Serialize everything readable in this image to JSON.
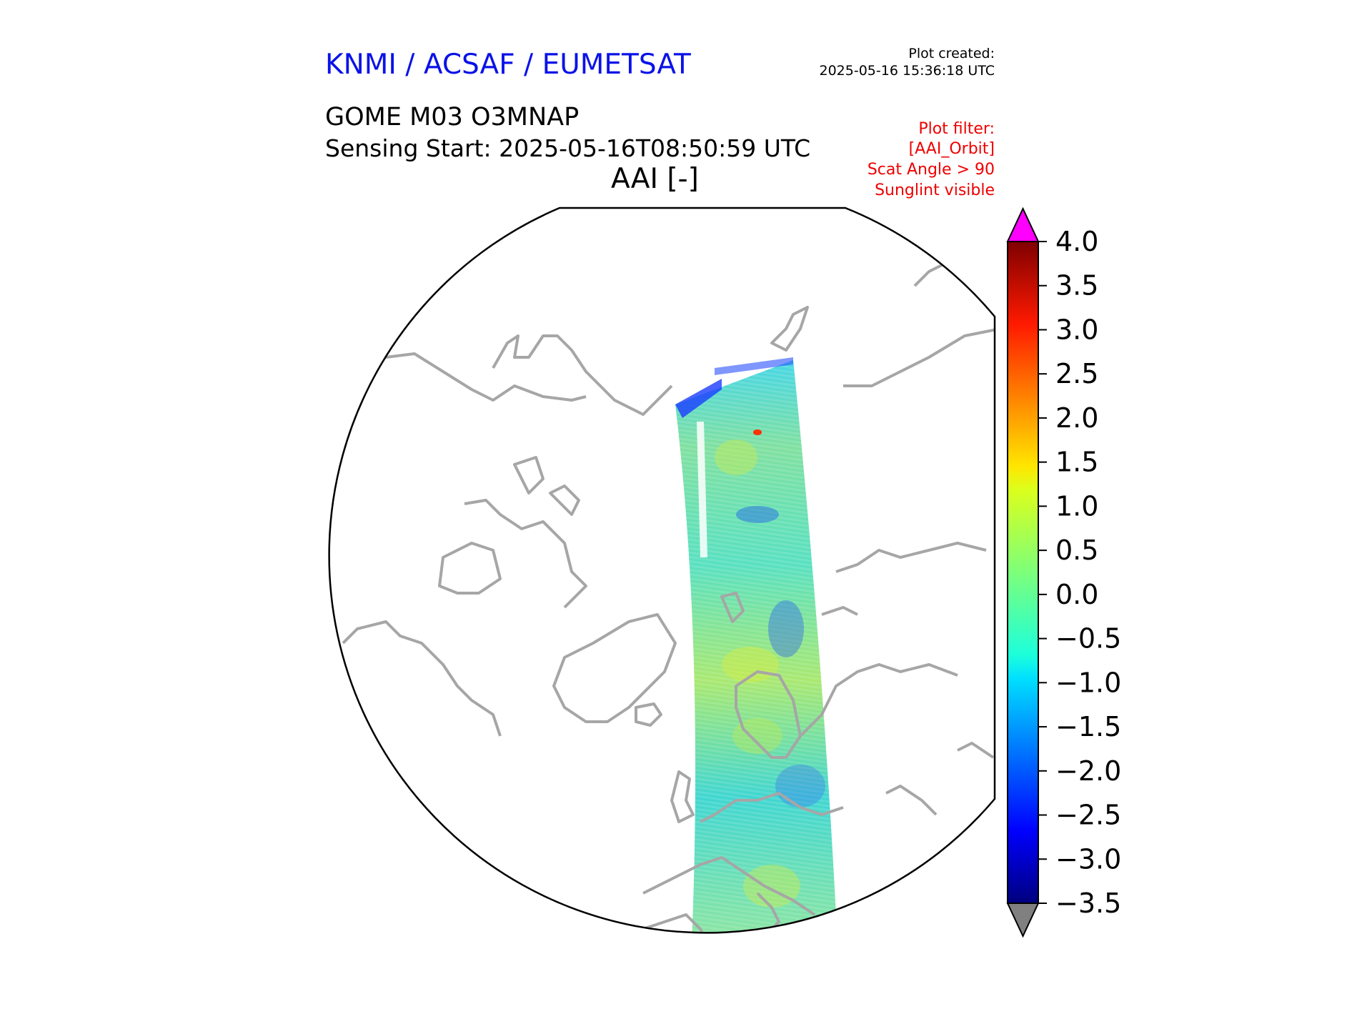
{
  "header": {
    "organisation": "KNMI / ACSAF / EUMETSAT",
    "plot_created_label": "Plot created:",
    "plot_created_time": "2025-05-16 15:36:18 UTC",
    "product": "GOME M03 O3MNAP",
    "sensing_start": "Sensing Start: 2025-05-16T08:50:59 UTC",
    "plot_title": "AAI [-]"
  },
  "filters": {
    "label": "Plot filter:",
    "items": [
      "[AAI_Orbit]",
      "Scat Angle > 90",
      "Sunglint visible"
    ]
  },
  "colors": {
    "organisation": "#0a12e8",
    "filter_text": "#ee0000",
    "coastline": "#a6a6a6",
    "over_range": "#ff00ff",
    "under_range": "#808080"
  },
  "colorbar": {
    "colormap": "jet",
    "min": -3.5,
    "max": 4.0,
    "extend": "both",
    "ticks": [
      "4.0",
      "3.5",
      "3.0",
      "2.5",
      "2.0",
      "1.5",
      "1.0",
      "0.5",
      "0.0",
      "−0.5",
      "−1.0",
      "−1.5",
      "−2.0",
      "−2.5",
      "−3.0",
      "−3.5"
    ]
  },
  "map": {
    "projection": "north-polar stereographic",
    "swath": "GOME ascending orbit over Europe and the Arctic",
    "typical_swath_value": 0.0
  }
}
